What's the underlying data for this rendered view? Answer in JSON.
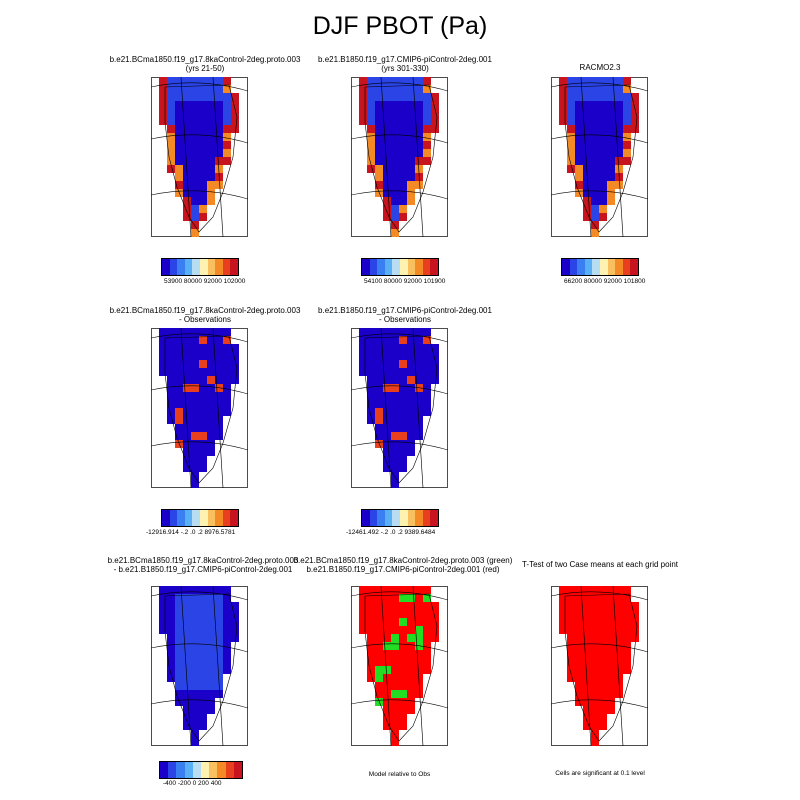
{
  "title": "DJF PBOT (Pa)",
  "palette": [
    "#1a00c8",
    "#2a44e6",
    "#3a7ff2",
    "#5ab0f5",
    "#b8dcf2",
    "#fdf2b0",
    "#f9c060",
    "#f48a26",
    "#e8401e",
    "#c8141e"
  ],
  "panels": [
    {
      "title_line1": "b.e21.BCma1850.f19_g17.8kaControl-2deg.proto.003",
      "title_line2": "(yrs 21-50)",
      "style": "abs",
      "colorbar_labels": "53900   80000  92000 102000"
    },
    {
      "title_line1": "b.e21.B1850.f19_g17.CMIP6-piControl-2deg.001",
      "title_line2": "(yrs 301-330)",
      "style": "abs",
      "colorbar_labels": "54100   80000  92000  101900"
    },
    {
      "title_line1": "RACMO2.3",
      "title_line2": "",
      "style": "abs",
      "colorbar_labels": "66200   80000  92000  101800"
    },
    {
      "title_line1": "b.e21.BCma1850.f19_g17.8kaControl-2deg.proto.003",
      "title_line2": "- Observations",
      "style": "diffobs",
      "colorbar_labels": "-12916.914  -.2  .0  .2  8976.5781"
    },
    {
      "title_line1": "b.e21.B1850.f19_g17.CMIP6-piControl-2deg.001",
      "title_line2": "- Observations",
      "style": "diffobs",
      "colorbar_labels": "-12461.492  -.2  .0  .2  9389.6484"
    },
    {
      "title_line1": "b.e21.BCma1850.f19_g17.8kaControl-2deg.proto.003",
      "title_line2": "- b.e21.B1850.f19_g17.CMIP6-piControl-2deg.001",
      "style": "diffcase",
      "colorbar_labels": "-400  -200   0   200  400"
    },
    {
      "title_line1": "b.e21.BCma1850.f19_g17.8kaControl-2deg.proto.003 (green)",
      "title_line2": "b.e21.B1850.f19_g17.CMIP6-piControl-2deg.001 (red)",
      "style": "relobs",
      "footnote": "Model relative to Obs"
    },
    {
      "title_line1": "T-Test of two Case means at each grid point",
      "title_line2": "",
      "style": "ttest",
      "footnote": "Cells are significant at 0.1 level"
    }
  ]
}
